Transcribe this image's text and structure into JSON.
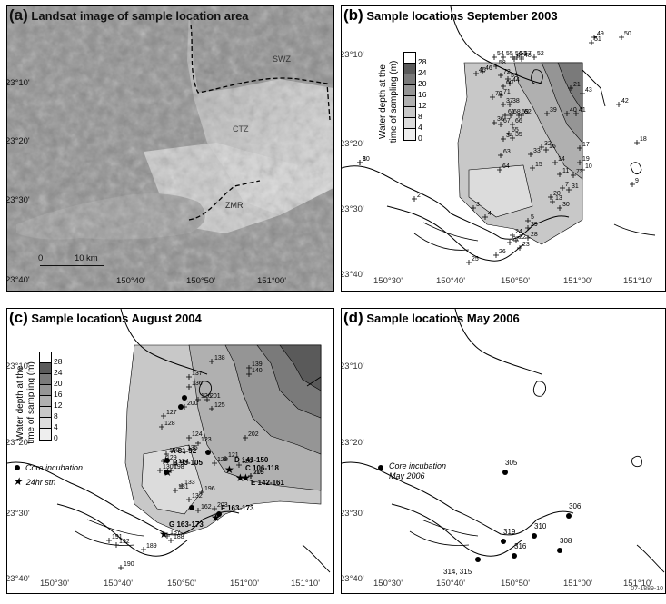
{
  "panels": {
    "a": {
      "letter": "(a)",
      "title": "Landsat image of sample location area",
      "zones": [
        "SWZ",
        "CTZ",
        "ZMR"
      ],
      "scale_labels": [
        "0",
        "10",
        "km"
      ]
    },
    "b": {
      "letter": "(b)",
      "title": "Sample locations September 2003"
    },
    "c": {
      "letter": "(c)",
      "title": "Sample locations August 2004",
      "legend_core": "Core incubation",
      "legend_stn": "24hr stn",
      "station_labels": [
        "A 81-92",
        "B 93-105",
        "C 106-118",
        "D 141-150",
        "E 142-161",
        "F 163-173",
        "G 163-173"
      ]
    },
    "d": {
      "letter": "(d)",
      "title": "Sample locations May 2006",
      "legend_core": "Core incubation May 2006"
    }
  },
  "axis": {
    "lat": [
      "23°10'",
      "23°20'",
      "23°30'",
      "23°40'"
    ],
    "lon": [
      "150°30'",
      "150°40'",
      "150°50'",
      "151°00'",
      "151°10'"
    ],
    "lon_a": [
      "150°40'",
      "150°50'",
      "151°00'"
    ]
  },
  "depth_legend": {
    "title_line1": "Water depth at the",
    "title_line2": "time of sampling (m)",
    "ticks": [
      "28",
      "24",
      "20",
      "16",
      "12",
      "8",
      "4",
      "0"
    ],
    "colors": [
      "#ffffff",
      "#5a5a5a",
      "#7a7a7a",
      "#959595",
      "#b0b0b0",
      "#c8c8c8",
      "#dcdcdc",
      "#eeeeee"
    ]
  },
  "sites_b": [
    "1",
    "2",
    "3",
    "4",
    "5",
    "7",
    "9",
    "10",
    "11",
    "13",
    "14",
    "15",
    "16",
    "17",
    "18",
    "19",
    "20",
    "21",
    "22",
    "23",
    "24",
    "25",
    "26",
    "27",
    "28",
    "29",
    "30",
    "31",
    "32",
    "33",
    "34",
    "35",
    "36",
    "37",
    "38",
    "39",
    "40",
    "41",
    "42",
    "43",
    "44",
    "45",
    "46",
    "47",
    "48",
    "49",
    "50",
    "51",
    "52",
    "53",
    "54",
    "55",
    "56",
    "57",
    "58",
    "59",
    "60",
    "61",
    "62",
    "63",
    "64",
    "65",
    "66",
    "67",
    "68",
    "69",
    "70",
    "71",
    "72",
    "73",
    "80"
  ],
  "sites_c": [
    "119",
    "120",
    "121",
    "122",
    "123",
    "124",
    "125",
    "126",
    "127",
    "128",
    "129",
    "130",
    "131",
    "132",
    "133",
    "134",
    "135",
    "136",
    "137",
    "138",
    "139",
    "140",
    "162",
    "187",
    "188",
    "189",
    "190",
    "191",
    "192",
    "196",
    "198",
    "199",
    "200",
    "201",
    "202",
    "203",
    "205"
  ],
  "sites_d": [
    "305",
    "306",
    "308",
    "310",
    "314, 315",
    "316",
    "319"
  ],
  "figure_id": "07-1889-10"
}
